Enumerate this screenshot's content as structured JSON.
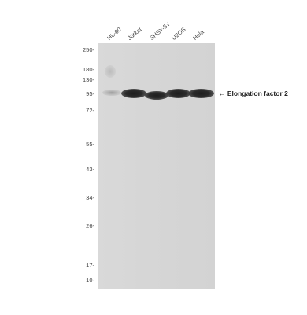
{
  "lanes": [
    "HL-60",
    "Jurkat",
    "SHSY-5Y",
    "U2OS",
    "Hela"
  ],
  "mw_markers": [
    "250-",
    "180-",
    "130-",
    "95-",
    "72-",
    "55-",
    "43-",
    "34-",
    "26-",
    "17-",
    "10-"
  ],
  "target_label": "← Elongation factor 2"
}
